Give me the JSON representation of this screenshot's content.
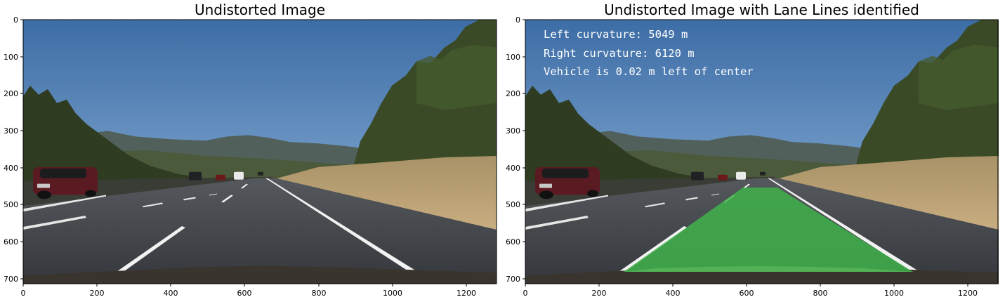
{
  "panels": [
    {
      "title": "Undistorted Image",
      "x_ticks": [
        "0",
        "200",
        "400",
        "600",
        "800",
        "1000",
        "1200"
      ],
      "y_ticks": [
        "0",
        "100",
        "200",
        "300",
        "400",
        "500",
        "600",
        "700"
      ],
      "overlay_text": []
    },
    {
      "title": "Undistorted Image with Lane Lines identified",
      "x_ticks": [
        "0",
        "200",
        "400",
        "600",
        "800",
        "1000",
        "1200"
      ],
      "y_ticks": [
        "0",
        "100",
        "200",
        "300",
        "400",
        "500",
        "600",
        "700"
      ],
      "overlay_text": [
        "Left curvature: 5049 m",
        "Right curvature: 6120 m",
        "Vehicle is 0.02 m left of center"
      ]
    }
  ],
  "colors": {
    "sky_top": "#3d6da6",
    "sky_bottom": "#b6cde0",
    "road": "#3e4147",
    "lane_fill": "#3fb24a",
    "lane_mark": "#f2f2f2",
    "grass": "#b59a6e",
    "trees": "#3a4a26"
  }
}
